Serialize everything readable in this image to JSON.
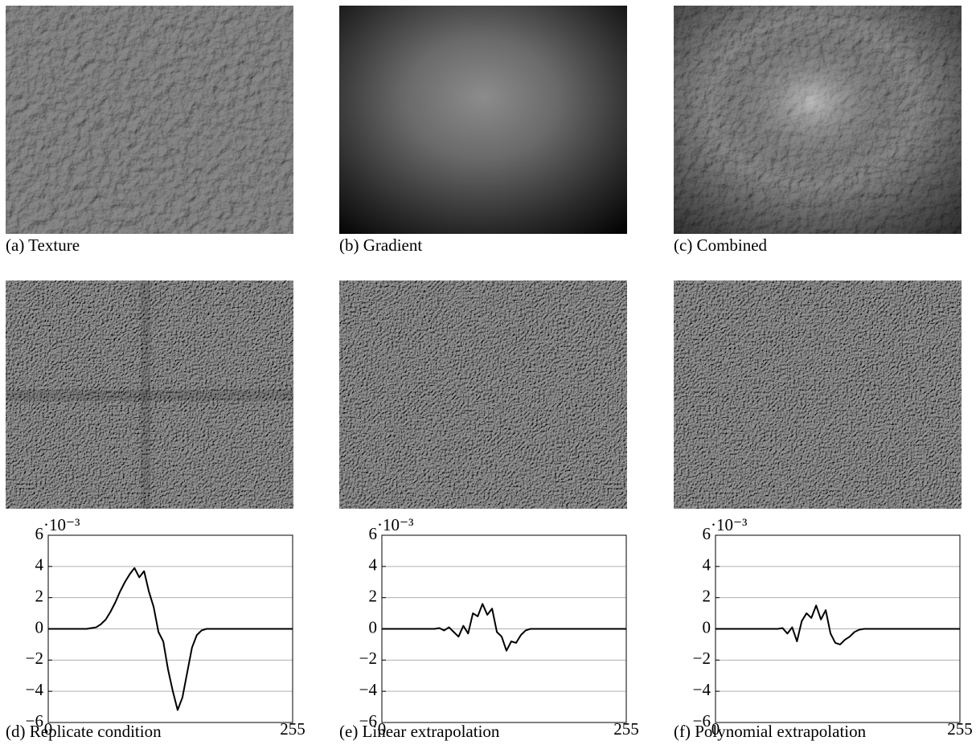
{
  "captions": [
    "(a) Texture",
    "(b) Gradient",
    "(c) Combined",
    "(d) Replicate condition",
    "(e) Linear extrapolation",
    "(f) Polynomial extrapolation"
  ],
  "chart_data": [
    {
      "type": "line",
      "y_multiplier": "·10⁻³",
      "x": [
        0,
        5,
        10,
        15,
        20,
        25,
        30,
        35,
        40,
        45,
        50,
        55,
        60,
        65,
        70,
        75,
        80,
        85,
        90,
        95,
        100,
        105,
        110,
        115,
        120,
        125,
        130,
        135,
        140,
        145,
        150,
        155,
        160,
        165,
        170,
        175,
        180,
        185,
        190,
        195,
        200,
        205,
        210,
        215,
        220,
        225,
        230,
        235,
        240,
        245,
        250,
        255
      ],
      "series": [
        {
          "color": "#000000",
          "values": [
            0,
            0,
            0,
            0,
            0,
            0,
            0,
            0,
            0,
            0.05,
            0.1,
            0.3,
            0.6,
            1.1,
            1.7,
            2.4,
            3.0,
            3.5,
            3.9,
            3.3,
            3.7,
            2.4,
            1.4,
            -0.2,
            -0.8,
            -2.6,
            -4.0,
            -5.2,
            -4.4,
            -2.8,
            -1.2,
            -0.4,
            -0.1,
            0,
            0,
            0,
            0,
            0,
            0,
            0,
            0,
            0,
            0,
            0,
            0,
            0,
            0,
            0,
            0,
            0,
            0,
            0
          ]
        }
      ],
      "xlim": [
        0,
        255
      ],
      "xticks": [
        0,
        255
      ],
      "ylim": [
        -6,
        6
      ],
      "yticks": [
        {
          "value": -6,
          "label": "−6"
        },
        {
          "value": -4,
          "label": "−4"
        },
        {
          "value": -2,
          "label": "−2"
        },
        0,
        2,
        4,
        6
      ],
      "grid": true
    },
    {
      "type": "line",
      "y_multiplier": "·10⁻³",
      "x": [
        0,
        5,
        10,
        15,
        20,
        25,
        30,
        35,
        40,
        45,
        50,
        55,
        60,
        65,
        70,
        75,
        80,
        85,
        90,
        95,
        100,
        105,
        110,
        115,
        120,
        125,
        130,
        135,
        140,
        145,
        150,
        155,
        160,
        165,
        170,
        175,
        180,
        185,
        190,
        195,
        200,
        205,
        210,
        215,
        220,
        225,
        230,
        235,
        240,
        245,
        250,
        255
      ],
      "series": [
        {
          "color": "#000000",
          "values": [
            0,
            0,
            0,
            0,
            0,
            0,
            0,
            0,
            0,
            0,
            0,
            0,
            0.05,
            -0.1,
            0.1,
            -0.2,
            -0.5,
            0.2,
            -0.3,
            1.0,
            0.8,
            1.6,
            0.9,
            1.3,
            -0.2,
            -0.5,
            -1.4,
            -0.8,
            -0.9,
            -0.4,
            -0.1,
            0,
            0,
            0,
            0,
            0,
            0,
            0,
            0,
            0,
            0,
            0,
            0,
            0,
            0,
            0,
            0,
            0,
            0,
            0,
            0,
            0
          ]
        }
      ],
      "xlim": [
        0,
        255
      ],
      "xticks": [
        0,
        255
      ],
      "ylim": [
        -6,
        6
      ],
      "yticks": [
        {
          "value": -6,
          "label": "−6"
        },
        {
          "value": -4,
          "label": "−4"
        },
        {
          "value": -2,
          "label": "−2"
        },
        0,
        2,
        4,
        6
      ],
      "grid": true
    },
    {
      "type": "line",
      "y_multiplier": "·10⁻³",
      "x": [
        0,
        5,
        10,
        15,
        20,
        25,
        30,
        35,
        40,
        45,
        50,
        55,
        60,
        65,
        70,
        75,
        80,
        85,
        90,
        95,
        100,
        105,
        110,
        115,
        120,
        125,
        130,
        135,
        140,
        145,
        150,
        155,
        160,
        165,
        170,
        175,
        180,
        185,
        190,
        195,
        200,
        205,
        210,
        215,
        220,
        225,
        230,
        235,
        240,
        245,
        250,
        255
      ],
      "series": [
        {
          "color": "#000000",
          "values": [
            0,
            0,
            0,
            0,
            0,
            0,
            0,
            0,
            0,
            0,
            0,
            0,
            0,
            0,
            0.05,
            -0.3,
            0.1,
            -0.8,
            0.5,
            1.0,
            0.7,
            1.5,
            0.6,
            1.2,
            -0.3,
            -0.9,
            -1.0,
            -0.7,
            -0.5,
            -0.2,
            -0.05,
            0,
            0,
            0,
            0,
            0,
            0,
            0,
            0,
            0,
            0,
            0,
            0,
            0,
            0,
            0,
            0,
            0,
            0,
            0,
            0,
            0
          ]
        }
      ],
      "xlim": [
        0,
        255
      ],
      "xticks": [
        0,
        255
      ],
      "ylim": [
        -6,
        6
      ],
      "yticks": [
        {
          "value": -6,
          "label": "−6"
        },
        {
          "value": -4,
          "label": "−4"
        },
        {
          "value": -2,
          "label": "−2"
        },
        0,
        2,
        4,
        6
      ],
      "grid": true
    }
  ]
}
